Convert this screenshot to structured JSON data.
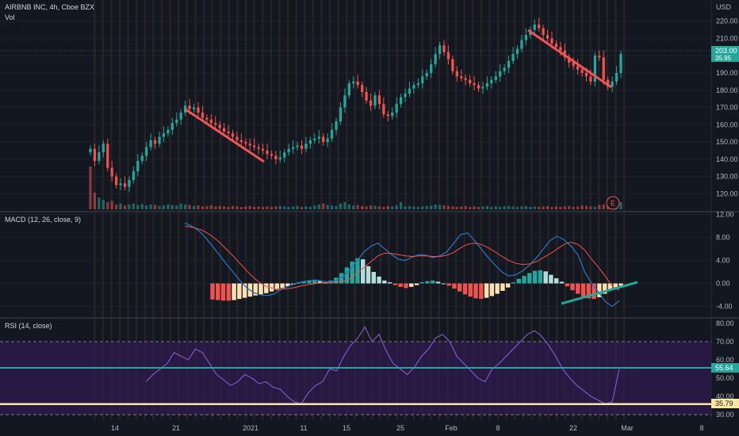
{
  "header": {
    "symbol_line": "AIRBNB INC, 4h, Cboe BZX",
    "vol_label": "Vol",
    "currency": "USD"
  },
  "colors": {
    "background": "#131722",
    "up": "#26a69a",
    "down": "#ef5350",
    "macd_line": "#2a6fba",
    "signal_line": "#ef5350",
    "hist_up": "#26a69a",
    "hist_up_fade": "#b2dfdb",
    "hist_down": "#ef5350",
    "hist_down_fade": "#ffe0b2",
    "rsi_line": "#7e57c2",
    "rsi_band": "#311b52",
    "trend_red": "#f05454",
    "trend_teal": "#26a69a",
    "level_teal": "#26a69a",
    "level_yellow": "#f7e7a1",
    "session_stripe": "#3b2d1e"
  },
  "chart_data": [
    {
      "type": "candlestick",
      "title": "AIRBNB INC, 4h, Cboe BZX",
      "y_unit": "USD",
      "y_ticks": [
        120,
        130,
        140,
        150,
        160,
        170,
        180,
        190,
        200,
        210,
        220
      ],
      "ylim": [
        111,
        224
      ],
      "x_ticks": [
        "14",
        "21",
        "2021",
        "11",
        "15",
        "25",
        "Feb",
        "8",
        "22",
        "Mar",
        "8"
      ],
      "price_labels": [
        "203.00",
        "35.95"
      ],
      "earnings_marker": "E",
      "closes": [
        146,
        139,
        144,
        149,
        135,
        130,
        125,
        126,
        124,
        128,
        133,
        139,
        142,
        147,
        151,
        149,
        153,
        155,
        157,
        161,
        163,
        167,
        171,
        169,
        170,
        167,
        164,
        163,
        161,
        160,
        158,
        156,
        155,
        153,
        151,
        150,
        149,
        148,
        147,
        146,
        145,
        143,
        142,
        140,
        141,
        144,
        146,
        147,
        148,
        146,
        149,
        151,
        152,
        153,
        150,
        152,
        157,
        162,
        170,
        177,
        184,
        185,
        183,
        179,
        174,
        171,
        177,
        172,
        166,
        165,
        167,
        172,
        176,
        178,
        181,
        183,
        184,
        188,
        190,
        195,
        201,
        206,
        202,
        198,
        191,
        188,
        187,
        186,
        184,
        183,
        181,
        182,
        184,
        186,
        188,
        191,
        193,
        197,
        201,
        204,
        209,
        212,
        215,
        218,
        216,
        212,
        210,
        207,
        205,
        203,
        199,
        196,
        194,
        192,
        190,
        188,
        185,
        200,
        199,
        186,
        182,
        185,
        190,
        201
      ],
      "volume_relative": [
        0.9,
        0.35,
        0.25,
        0.2,
        0.15,
        0.18,
        0.1,
        0.12,
        0.08,
        0.1,
        0.12,
        0.09,
        0.11,
        0.08,
        0.1,
        0.09,
        0.07,
        0.08,
        0.1,
        0.09,
        0.08,
        0.12,
        0.1,
        0.09,
        0.07,
        0.08,
        0.06,
        0.07,
        0.08,
        0.06,
        0.07,
        0.06,
        0.05,
        0.07,
        0.06,
        0.05,
        0.06,
        0.07,
        0.05,
        0.06,
        0.05,
        0.06,
        0.05,
        0.06,
        0.07,
        0.06,
        0.05,
        0.06,
        0.07,
        0.05,
        0.06,
        0.05,
        0.08,
        0.1,
        0.12,
        0.09,
        0.08,
        0.07,
        0.12,
        0.15,
        0.1,
        0.08,
        0.09,
        0.07,
        0.06,
        0.08,
        0.07,
        0.06,
        0.05,
        0.07,
        0.06,
        0.08,
        0.15,
        0.06,
        0.07,
        0.06,
        0.05,
        0.06,
        0.07,
        0.08,
        0.1,
        0.09,
        0.08,
        0.07,
        0.06,
        0.05,
        0.06,
        0.07,
        0.05,
        0.06,
        0.05,
        0.06,
        0.07,
        0.05,
        0.06,
        0.05,
        0.06,
        0.07,
        0.06,
        0.05,
        0.06,
        0.07,
        0.05,
        0.06,
        0.05,
        0.06,
        0.07,
        0.05,
        0.06,
        0.05,
        0.06,
        0.07,
        0.05,
        0.06,
        0.08,
        0.07,
        0.06,
        0.05,
        0.09,
        0.1,
        0.12,
        0.08,
        0.1,
        0.15
      ]
    },
    {
      "type": "line",
      "title": "MACD (12, 26, close, 9)",
      "y_ticks": [
        -4.0,
        0.0,
        4.0,
        8.0,
        12.0
      ],
      "y_tick_labels": [
        "-4.00",
        "0.00",
        "4.00",
        "8.00",
        "12.00"
      ],
      "ylim": [
        -6,
        12.5
      ],
      "series": [
        {
          "role": "macd",
          "values": [
            10.5,
            10.0,
            9.2,
            8.0,
            6.5,
            5.0,
            3.4,
            2.0,
            0.5,
            -0.8,
            -1.6,
            -2.0,
            -2.1,
            -1.8,
            -1.0,
            -0.5,
            0.0,
            0.3,
            0.5,
            0.6,
            0.4,
            0.2,
            0.6,
            1.2,
            2.5,
            4.0,
            5.5,
            6.5,
            7.0,
            6.0,
            5.0,
            4.2,
            4.0,
            4.6,
            5.0,
            4.9,
            4.5,
            4.8,
            5.5,
            7.0,
            8.5,
            8.8,
            7.5,
            6.0,
            4.5,
            3.2,
            2.0,
            1.3,
            1.5,
            2.2,
            3.2,
            4.5,
            6.0,
            7.5,
            8.2,
            7.6,
            6.5,
            5.0,
            2.0,
            0.0,
            -1.5,
            -3.2,
            -4.0,
            -3.0
          ]
        },
        {
          "role": "signal",
          "values": [
            10.0,
            9.8,
            9.5,
            9.0,
            8.2,
            7.2,
            6.0,
            4.8,
            3.5,
            2.2,
            1.0,
            0.0,
            -0.6,
            -0.9,
            -1.0,
            -0.9,
            -0.7,
            -0.4,
            -0.2,
            0.0,
            0.1,
            0.1,
            0.2,
            0.4,
            0.9,
            1.8,
            2.8,
            3.8,
            4.8,
            5.3,
            5.2,
            5.0,
            4.8,
            4.7,
            4.8,
            4.8,
            4.7,
            4.7,
            4.9,
            5.4,
            6.2,
            6.8,
            7.0,
            6.8,
            6.2,
            5.5,
            4.7,
            4.0,
            3.5,
            3.3,
            3.4,
            3.8,
            4.5,
            5.2,
            6.0,
            6.8,
            7.2,
            6.8,
            5.8,
            4.2,
            2.8,
            1.2,
            -0.5,
            -1.2
          ]
        },
        {
          "role": "histogram",
          "values": [
            -2.8,
            -2.9,
            -3.0,
            -3.0,
            -2.9,
            -2.7,
            -2.5,
            -2.3,
            -2.1,
            -1.9,
            -1.7,
            -1.4,
            -1.1,
            -0.8,
            -0.5,
            -0.2,
            0.1,
            0.3,
            0.5,
            0.6,
            0.4,
            0.2,
            0.5,
            1.0,
            1.8,
            2.8,
            3.8,
            4.4,
            4.2,
            3.0,
            2.0,
            1.2,
            0.5,
            0.2,
            -0.3,
            -0.6,
            -0.8,
            -0.6,
            -0.3,
            0.2,
            0.4,
            0.5,
            0.3,
            0.0,
            -0.4,
            -0.9,
            -1.4,
            -1.9,
            -2.3,
            -2.6,
            -2.7,
            -2.5,
            -2.2,
            -1.8,
            -1.3,
            -0.7,
            0.2,
            0.8,
            1.3,
            1.8,
            2.2,
            2.3,
            2.1,
            1.5,
            0.9,
            0.3,
            -0.5,
            -1.2,
            -1.8,
            -2.3,
            -2.6,
            -2.7,
            -2.4,
            -1.8,
            -1.2,
            -0.8,
            -0.4
          ]
        }
      ]
    },
    {
      "type": "line",
      "title": "RSI (14, close)",
      "y_ticks": [
        30,
        40,
        50,
        60,
        70,
        80
      ],
      "y_tick_labels": [
        "30.00",
        "40.00",
        "50.00",
        "60.00",
        "70.00",
        "80.00"
      ],
      "ylim": [
        27,
        83
      ],
      "band": [
        30,
        70
      ],
      "levels": [
        55.64,
        35.79
      ],
      "level_labels": [
        "55.64",
        "35.79"
      ],
      "values": [
        48,
        52,
        55,
        58,
        64,
        62,
        60,
        66,
        64,
        58,
        52,
        49,
        46,
        48,
        52,
        50,
        47,
        48,
        45,
        44,
        40,
        37,
        36,
        42,
        46,
        48,
        55,
        54,
        62,
        68,
        72,
        78,
        70,
        74,
        65,
        58,
        55,
        52,
        56,
        62,
        66,
        72,
        74,
        70,
        62,
        58,
        54,
        50,
        48,
        55,
        58,
        62,
        66,
        70,
        74,
        76,
        73,
        68,
        62,
        55,
        50,
        46,
        43,
        40,
        38,
        36,
        37,
        55
      ]
    }
  ]
}
